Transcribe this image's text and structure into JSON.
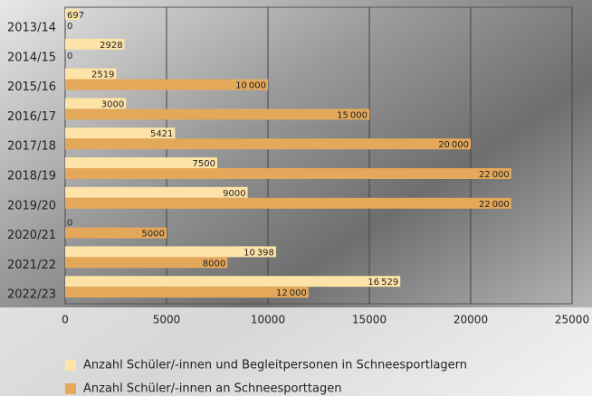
{
  "chart_data": {
    "type": "bar",
    "orientation": "horizontal",
    "categories": [
      "2013/14",
      "2014/15",
      "2015/16",
      "2016/17",
      "2017/18",
      "2018/19",
      "2019/20",
      "2020/21",
      "2021/22",
      "2022/23"
    ],
    "series": [
      {
        "name": "Anzahl Schüler/-innen und Begleitpersonen in Schneesportlagern",
        "color": "#fde3a7",
        "values": [
          697,
          2928,
          2519,
          3000,
          5421,
          7500,
          9000,
          0,
          10398,
          16529
        ],
        "value_labels": [
          "697",
          "2928",
          "2519",
          "3000",
          "5421",
          "7500",
          "9000",
          "0",
          "10 398",
          "16 529"
        ]
      },
      {
        "name": "Anzahl Schüler/-innen an Schneesporttagen",
        "color": "#e4a85a",
        "values": [
          0,
          0,
          10000,
          15000,
          20000,
          22000,
          22000,
          5000,
          8000,
          12000
        ],
        "value_labels": [
          "0",
          "0",
          "10 000",
          "15 000",
          "20 000",
          "22 000",
          "22 000",
          "5000",
          "8000",
          "12 000"
        ]
      }
    ],
    "xlim": [
      0,
      25000
    ],
    "xticks": [
      0,
      5000,
      10000,
      15000,
      20000,
      25000
    ],
    "grid": true
  }
}
